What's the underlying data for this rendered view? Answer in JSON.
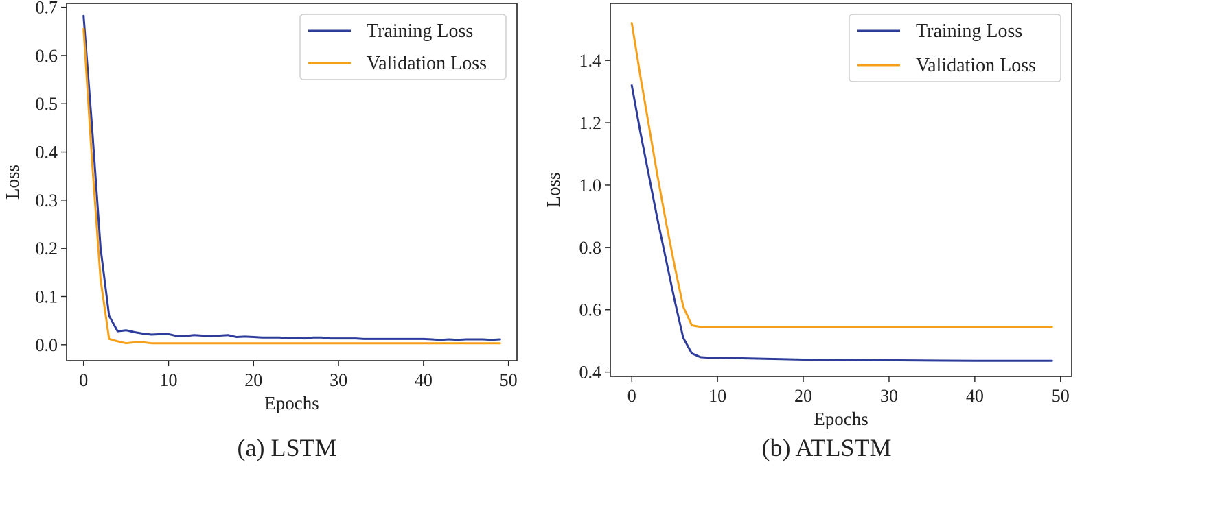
{
  "colors": {
    "training": "#2e3d9b",
    "validation": "#f6a01a",
    "axis": "#222222",
    "legend_border": "#cccccc"
  },
  "chart_data": [
    {
      "id": "lstm",
      "type": "line",
      "caption": "(a) LSTM",
      "xlabel": "Epochs",
      "ylabel": "Loss",
      "xlim": [
        -2,
        51
      ],
      "ylim": [
        -0.033,
        0.708
      ],
      "xticks": [
        0,
        10,
        20,
        30,
        40,
        50
      ],
      "xtick_labels": [
        "0",
        "10",
        "20",
        "30",
        "40",
        "50"
      ],
      "yticks": [
        0.0,
        0.1,
        0.2,
        0.3,
        0.4,
        0.5,
        0.6,
        0.7
      ],
      "ytick_labels": [
        "0.0",
        "0.1",
        "0.2",
        "0.3",
        "0.4",
        "0.5",
        "0.6",
        "0.7"
      ],
      "legend_position": "top-right",
      "grid": false,
      "series": [
        {
          "name": "Training Loss",
          "color_key": "training",
          "x": [
            0,
            1,
            2,
            3,
            4,
            5,
            6,
            7,
            8,
            9,
            10,
            11,
            12,
            13,
            14,
            15,
            16,
            17,
            18,
            19,
            20,
            21,
            22,
            23,
            24,
            25,
            26,
            27,
            28,
            29,
            30,
            31,
            32,
            33,
            34,
            35,
            36,
            37,
            38,
            39,
            40,
            41,
            42,
            43,
            44,
            45,
            46,
            47,
            48,
            49
          ],
          "y": [
            0.682,
            0.45,
            0.2,
            0.06,
            0.028,
            0.03,
            0.026,
            0.023,
            0.021,
            0.022,
            0.022,
            0.018,
            0.018,
            0.02,
            0.019,
            0.018,
            0.019,
            0.02,
            0.016,
            0.017,
            0.016,
            0.015,
            0.015,
            0.015,
            0.014,
            0.014,
            0.013,
            0.015,
            0.015,
            0.013,
            0.013,
            0.013,
            0.013,
            0.012,
            0.012,
            0.012,
            0.012,
            0.012,
            0.012,
            0.012,
            0.012,
            0.011,
            0.01,
            0.011,
            0.01,
            0.011,
            0.011,
            0.011,
            0.01,
            0.011
          ]
        },
        {
          "name": "Validation Loss",
          "color_key": "validation",
          "x": [
            0,
            1,
            2,
            3,
            4,
            5,
            6,
            7,
            8,
            9,
            10,
            11,
            12,
            13,
            14,
            15,
            16,
            17,
            18,
            19,
            20,
            21,
            22,
            23,
            24,
            25,
            26,
            27,
            28,
            29,
            30,
            31,
            32,
            33,
            34,
            35,
            36,
            37,
            38,
            39,
            40,
            41,
            42,
            43,
            44,
            45,
            46,
            47,
            48,
            49
          ],
          "y": [
            0.655,
            0.38,
            0.135,
            0.012,
            0.007,
            0.003,
            0.005,
            0.005,
            0.003,
            0.003,
            0.003,
            0.003,
            0.003,
            0.003,
            0.003,
            0.003,
            0.003,
            0.003,
            0.003,
            0.003,
            0.003,
            0.003,
            0.003,
            0.003,
            0.003,
            0.003,
            0.003,
            0.003,
            0.003,
            0.003,
            0.003,
            0.003,
            0.003,
            0.003,
            0.003,
            0.003,
            0.003,
            0.003,
            0.003,
            0.003,
            0.003,
            0.003,
            0.003,
            0.003,
            0.003,
            0.003,
            0.003,
            0.003,
            0.003,
            0.003
          ]
        }
      ]
    },
    {
      "id": "atlstm",
      "type": "line",
      "caption": "(b) ATLSTM",
      "xlabel": "Epochs",
      "ylabel": "Loss",
      "xlim": [
        -2.5,
        51.3
      ],
      "ylim": [
        0.386,
        1.583
      ],
      "xticks": [
        0,
        10,
        20,
        30,
        40,
        50
      ],
      "xtick_labels": [
        "0",
        "10",
        "20",
        "30",
        "40",
        "50"
      ],
      "yticks": [
        0.4,
        0.6,
        0.8,
        1.0,
        1.2,
        1.4
      ],
      "ytick_labels": [
        "0.4",
        "0.6",
        "0.8",
        "1.0",
        "1.2",
        "1.4"
      ],
      "legend_position": "top-right",
      "grid": false,
      "series": [
        {
          "name": "Training Loss",
          "color_key": "training",
          "x": [
            0,
            1,
            2,
            3,
            4,
            5,
            6,
            7,
            8,
            9,
            10,
            12,
            15,
            20,
            25,
            30,
            35,
            40,
            45,
            49
          ],
          "y": [
            1.32,
            1.17,
            1.03,
            0.89,
            0.76,
            0.63,
            0.51,
            0.46,
            0.448,
            0.446,
            0.446,
            0.445,
            0.443,
            0.44,
            0.439,
            0.438,
            0.437,
            0.436,
            0.436,
            0.436
          ]
        },
        {
          "name": "Validation Loss",
          "color_key": "validation",
          "x": [
            0,
            1,
            2,
            3,
            4,
            5,
            6,
            7,
            8,
            9,
            10,
            12,
            15,
            20,
            25,
            30,
            35,
            40,
            45,
            49
          ],
          "y": [
            1.52,
            1.35,
            1.19,
            1.03,
            0.88,
            0.74,
            0.61,
            0.55,
            0.545,
            0.545,
            0.545,
            0.545,
            0.545,
            0.545,
            0.545,
            0.545,
            0.545,
            0.545,
            0.545,
            0.545
          ]
        }
      ]
    }
  ]
}
